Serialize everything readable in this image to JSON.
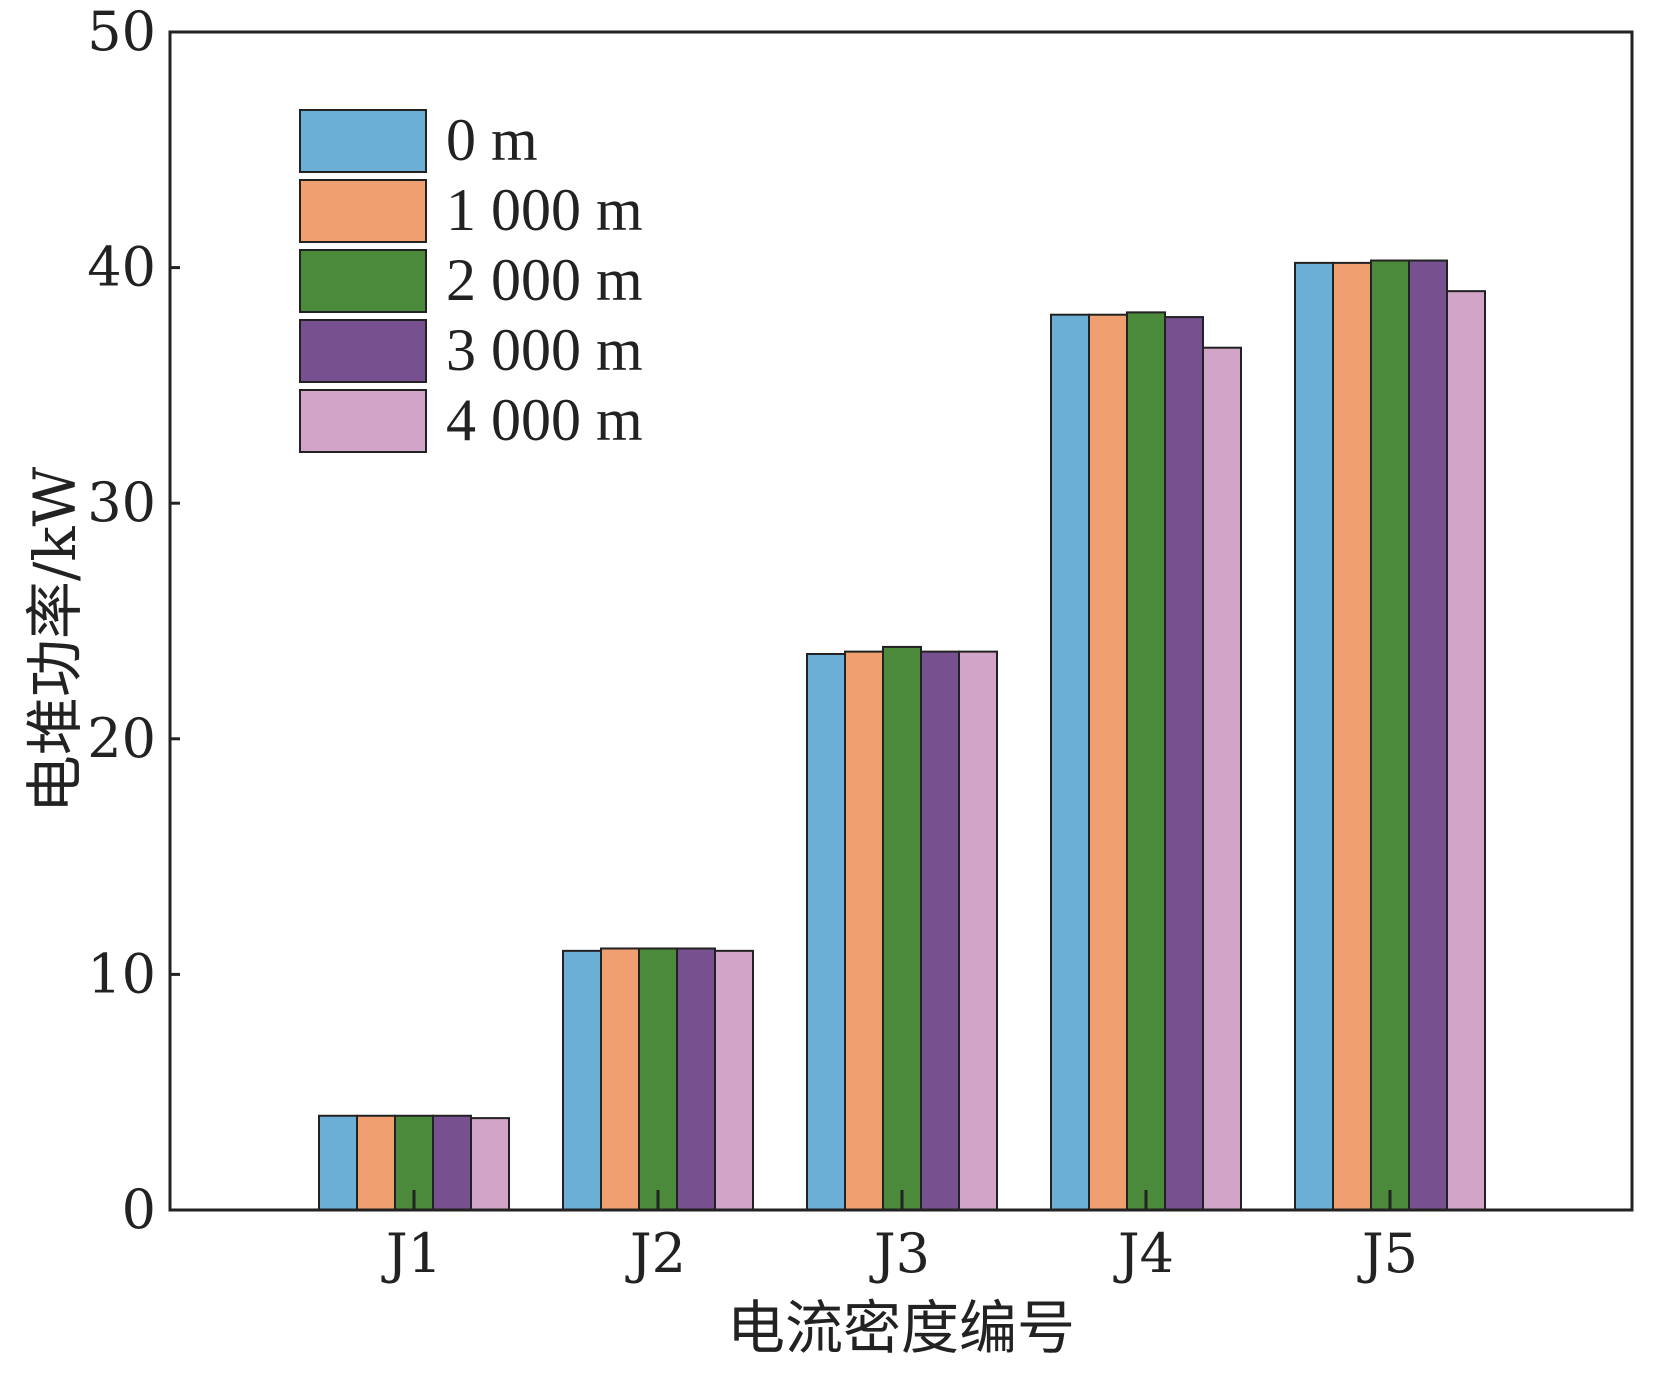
{
  "chart_data": {
    "type": "bar",
    "title": "",
    "xlabel": "电流密度编号",
    "ylabel": "电堆功率/kW",
    "categories": [
      "J1",
      "J2",
      "J3",
      "J4",
      "J5"
    ],
    "ylim": [
      0,
      50
    ],
    "yticks": [
      0,
      10,
      20,
      30,
      40,
      50
    ],
    "grid": false,
    "legend_position": "top-left",
    "series": [
      {
        "name": "0 m",
        "color": "#6baed6",
        "values": [
          4.0,
          11.0,
          23.6,
          38.0,
          40.2
        ]
      },
      {
        "name": "1 000 m",
        "color": "#f0a070",
        "values": [
          4.0,
          11.1,
          23.7,
          38.0,
          40.2
        ]
      },
      {
        "name": "2 000 m",
        "color": "#4a8a3a",
        "values": [
          4.0,
          11.1,
          23.9,
          38.1,
          40.3
        ]
      },
      {
        "name": "3 000 m",
        "color": "#76508f",
        "values": [
          4.0,
          11.1,
          23.7,
          37.9,
          40.3
        ]
      },
      {
        "name": "4 000 m",
        "color": "#d1a4c8",
        "values": [
          3.9,
          11.0,
          23.7,
          36.6,
          39.0
        ]
      }
    ]
  }
}
